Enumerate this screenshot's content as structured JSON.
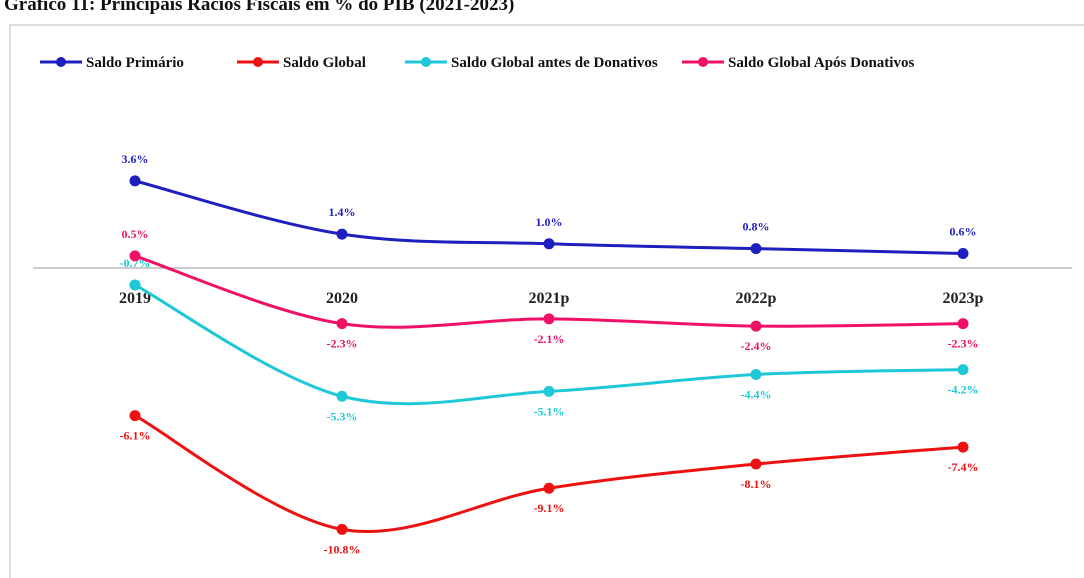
{
  "chart_data": {
    "type": "line",
    "title": "Gráfico 11: Principais Rácios Fiscais em % do PIB (2021-2023)",
    "categories": [
      "2019",
      "2020",
      "2021p",
      "2022p",
      "2023p"
    ],
    "series": [
      {
        "name": "Saldo Primário",
        "color": "#1f1fbf",
        "values": [
          3.6,
          1.4,
          1.0,
          0.8,
          0.6
        ],
        "value_labels": [
          "3.6%",
          "1.4%",
          "1.0%",
          "0.8%",
          "0.6%"
        ]
      },
      {
        "name": "Saldo Global",
        "color": "#ee1111",
        "values": [
          -6.1,
          -10.8,
          -9.1,
          -8.1,
          -7.4
        ],
        "value_labels": [
          "-6.1%",
          "-10.8%",
          "-9.1%",
          "-8.1%",
          "-7.4%"
        ]
      },
      {
        "name": "Saldo Global antes de Donativos",
        "color": "#1ec8d8",
        "values": [
          -0.7,
          -5.3,
          -5.1,
          -4.4,
          -4.2
        ],
        "value_labels": [
          "-0.7%",
          "-5.3%",
          "-5.1%",
          "-4.4%",
          "-4.2%"
        ]
      },
      {
        "name": "Saldo Global Após Donativos",
        "color": "#ee1166",
        "values": [
          0.5,
          -2.3,
          -2.1,
          -2.4,
          -2.3
        ],
        "value_labels": [
          "0.5%",
          "-2.3%",
          "-2.1%",
          "-2.4%",
          "-2.3%"
        ]
      }
    ],
    "legend": "top"
  }
}
